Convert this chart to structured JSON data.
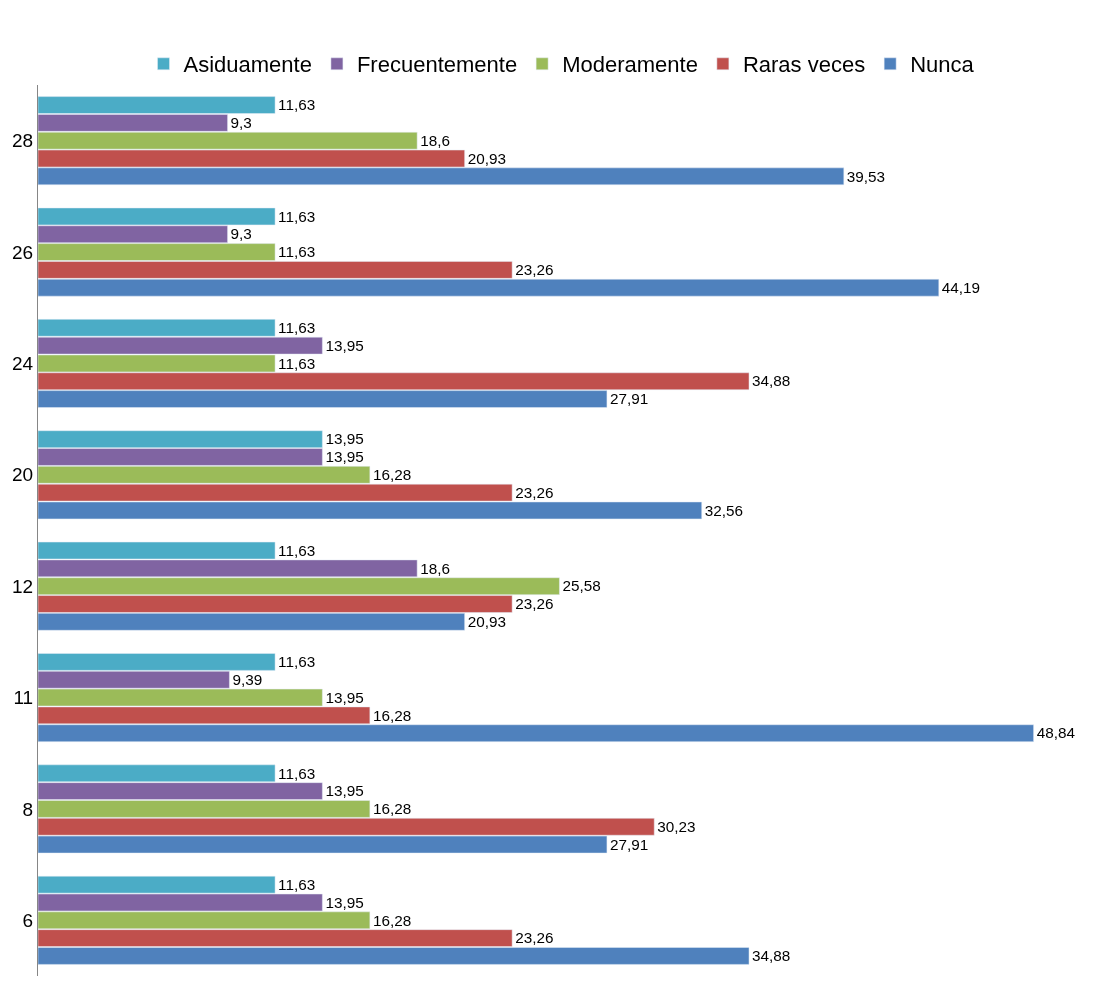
{
  "chart_data": {
    "type": "bar",
    "orientation": "horizontal",
    "categories": [
      "28",
      "26",
      "24",
      "20",
      "12",
      "11",
      "8",
      "6"
    ],
    "tick_labels": "y",
    "legend": "top",
    "series": [
      {
        "name": "Asiduamente",
        "color": "#4bacc6",
        "values": [
          11.63,
          11.63,
          11.63,
          13.95,
          11.63,
          11.63,
          11.63,
          11.63
        ],
        "value_labels": [
          "11,63",
          "11,63",
          "11,63",
          "13,95",
          "11,63",
          "11,63",
          "11,63",
          "11,63"
        ]
      },
      {
        "name": "Frecuentemente",
        "color": "#8064a2",
        "values": [
          9.3,
          9.3,
          13.95,
          13.95,
          18.6,
          9.39,
          13.95,
          13.95
        ],
        "value_labels": [
          "9,3",
          "9,3",
          "13,95",
          "13,95",
          "18,6",
          "9,39",
          "13,95",
          "13,95"
        ]
      },
      {
        "name": "Moderamente",
        "color": "#9bbb59",
        "values": [
          18.6,
          11.63,
          11.63,
          16.28,
          25.58,
          13.95,
          16.28,
          16.28
        ],
        "value_labels": [
          "18,6",
          "11,63",
          "11,63",
          "16,28",
          "25,58",
          "13,95",
          "16,28",
          "16,28"
        ]
      },
      {
        "name": "Raras veces",
        "color": "#c0504d",
        "values": [
          20.93,
          23.26,
          34.88,
          23.26,
          23.26,
          16.28,
          30.23,
          23.26
        ],
        "value_labels": [
          "20,93",
          "23,26",
          "34,88",
          "23,26",
          "23,26",
          "16,28",
          "30,23",
          "23,26"
        ]
      },
      {
        "name": "Nunca",
        "color": "#4f81bd",
        "values": [
          39.53,
          44.19,
          27.91,
          32.56,
          20.93,
          48.84,
          27.91,
          34.88
        ],
        "value_labels": [
          "39,53",
          "44,19",
          "27,91",
          "32,56",
          "20,93",
          "48,84",
          "27,91",
          "34,88"
        ]
      }
    ]
  }
}
